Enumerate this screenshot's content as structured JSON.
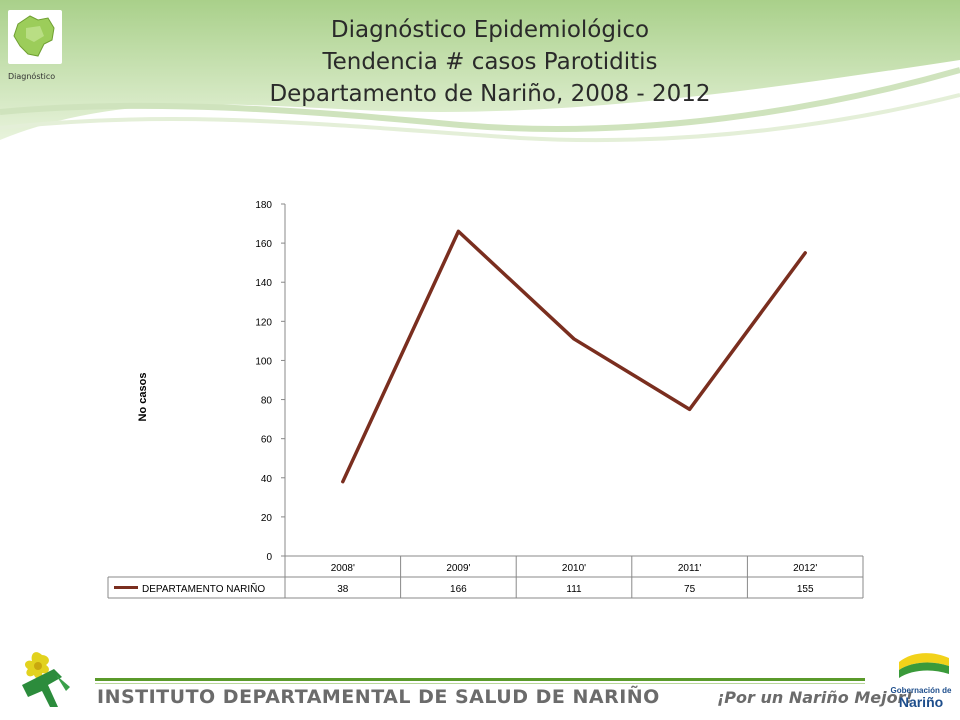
{
  "header": {
    "logo_caption": "Diagnóstico",
    "title_lines": [
      "Diagnóstico Epidemiológico",
      "Tendencia # casos Parotiditis",
      "Departamento de Nariño,  2008 - 2012"
    ]
  },
  "chart_data": {
    "type": "line",
    "categories": [
      "2008'",
      "2009'",
      "2010'",
      "2011'",
      "2012'"
    ],
    "series": [
      {
        "name": "DEPARTAMENTO NARIÑO",
        "values": [
          38,
          166,
          111,
          75,
          155
        ],
        "color": "#7a2e1f"
      }
    ],
    "ylabel": "No casos",
    "ylim": [
      0,
      180
    ],
    "yticks": [
      0,
      20,
      40,
      60,
      80,
      100,
      120,
      140,
      160,
      180
    ],
    "legend": "data-table-left",
    "grid": false
  },
  "footer": {
    "institute": "INSTITUTO DEPARTAMENTAL DE SALUD DE NARIÑO",
    "slogan": "¡Por un Nariño Mejor!",
    "gob_line1": "Gobernación de",
    "gob_line2": "Nariño"
  },
  "colors": {
    "header_green": "#8fc16a",
    "line": "#7a2e1f",
    "footer_green": "#5a9a2a"
  }
}
